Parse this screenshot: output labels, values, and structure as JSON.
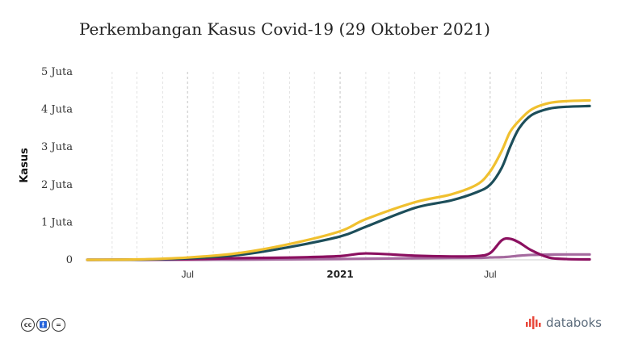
{
  "title": "Perkembangan Kasus Covid-19 (29 Oktober 2021)",
  "brand": {
    "name": "databoks",
    "accent": "#e8483b"
  },
  "license_icons": [
    "creative-commons-icon",
    "attribution-icon",
    "no-derivatives-icon"
  ],
  "chart_data": {
    "type": "line",
    "title": "Perkembangan Kasus Covid-19 (29 Oktober 2021)",
    "ylabel": "Kasus",
    "xlabel": "",
    "x": [
      "2020-03-02",
      "2020-05-01",
      "2020-07-01",
      "2020-09-01",
      "2020-11-01",
      "2021-01-01",
      "2021-02-01",
      "2021-04-01",
      "2021-05-15",
      "2021-06-15",
      "2021-07-01",
      "2021-07-15",
      "2021-07-25",
      "2021-08-05",
      "2021-08-20",
      "2021-09-10",
      "2021-10-01",
      "2021-10-29"
    ],
    "ylim": [
      0,
      5000000
    ],
    "yticks": [
      {
        "value": 0,
        "label": "0"
      },
      {
        "value": 1000000,
        "label": "1 Juta"
      },
      {
        "value": 2000000,
        "label": "2 Juta"
      },
      {
        "value": 3000000,
        "label": "3 Juta"
      },
      {
        "value": 4000000,
        "label": "4 Juta"
      },
      {
        "value": 5000000,
        "label": "5 Juta"
      }
    ],
    "xticks": [
      {
        "date": "2020-07-01",
        "label": "Jul",
        "bold": false
      },
      {
        "date": "2021-01-01",
        "label": "2021",
        "bold": true
      },
      {
        "date": "2021-07-01",
        "label": "Jul",
        "bold": false
      }
    ],
    "series": [
      {
        "color": "#f0c02f",
        "values": [
          0,
          10000,
          60000,
          180000,
          420000,
          760000,
          1080000,
          1530000,
          1740000,
          2000000,
          2350000,
          2900000,
          3400000,
          3700000,
          4000000,
          4170000,
          4220000,
          4240000
        ]
      },
      {
        "color": "#1d4e5a",
        "values": [
          0,
          5000,
          40000,
          130000,
          340000,
          620000,
          880000,
          1380000,
          1580000,
          1800000,
          2000000,
          2450000,
          3000000,
          3500000,
          3850000,
          4020000,
          4070000,
          4090000
        ]
      },
      {
        "color": "#8b1060",
        "values": [
          0,
          4000,
          15000,
          45000,
          60000,
          100000,
          170000,
          110000,
          90000,
          100000,
          180000,
          520000,
          560000,
          460000,
          250000,
          60000,
          20000,
          10000
        ]
      },
      {
        "color": "#a56a9f",
        "values": [
          0,
          0,
          2000,
          6000,
          12000,
          22000,
          30000,
          42000,
          50000,
          53000,
          63000,
          70000,
          85000,
          110000,
          130000,
          140000,
          143000,
          143000
        ]
      }
    ]
  }
}
